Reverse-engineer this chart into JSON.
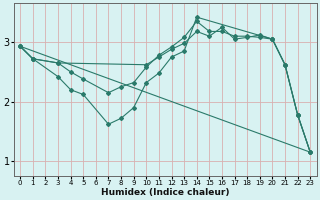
{
  "xlabel": "Humidex (Indice chaleur)",
  "bg_color": "#d8f2f2",
  "line_color": "#2a7a6a",
  "grid_color": "#b8d8d8",
  "xlim": [
    -0.5,
    23.5
  ],
  "ylim": [
    0.75,
    3.65
  ],
  "yticks": [
    1,
    2,
    3
  ],
  "xticks": [
    0,
    1,
    2,
    3,
    4,
    5,
    6,
    7,
    8,
    9,
    10,
    11,
    12,
    13,
    14,
    15,
    16,
    17,
    18,
    19,
    20,
    21,
    22,
    23
  ],
  "lines": [
    {
      "x": [
        0,
        1,
        3,
        4,
        5,
        7,
        8,
        9,
        10,
        11,
        12,
        13,
        14,
        20,
        21,
        22,
        23
      ],
      "y": [
        2.93,
        2.72,
        2.42,
        2.2,
        2.12,
        1.62,
        1.72,
        1.9,
        2.32,
        2.48,
        2.75,
        2.85,
        3.42,
        3.05,
        2.62,
        1.78,
        1.15
      ]
    },
    {
      "x": [
        0,
        1,
        3,
        4,
        5,
        7,
        8,
        9,
        10,
        11,
        12,
        13,
        14,
        15,
        16,
        17,
        18,
        19,
        20,
        21,
        22,
        23
      ],
      "y": [
        2.93,
        2.72,
        2.65,
        2.5,
        2.38,
        2.15,
        2.25,
        2.32,
        2.58,
        2.78,
        2.92,
        3.08,
        3.35,
        3.18,
        3.18,
        3.1,
        3.1,
        3.08,
        3.05,
        2.62,
        1.78,
        1.15
      ]
    },
    {
      "x": [
        0,
        1,
        3,
        10,
        11,
        12,
        13,
        14,
        15,
        16,
        17,
        18,
        19,
        20,
        21,
        22,
        23
      ],
      "y": [
        2.93,
        2.72,
        2.65,
        2.62,
        2.75,
        2.88,
        2.98,
        3.18,
        3.1,
        3.25,
        3.05,
        3.08,
        3.12,
        3.05,
        2.62,
        1.78,
        1.15
      ]
    },
    {
      "x": [
        0,
        23
      ],
      "y": [
        2.93,
        1.15
      ]
    }
  ]
}
